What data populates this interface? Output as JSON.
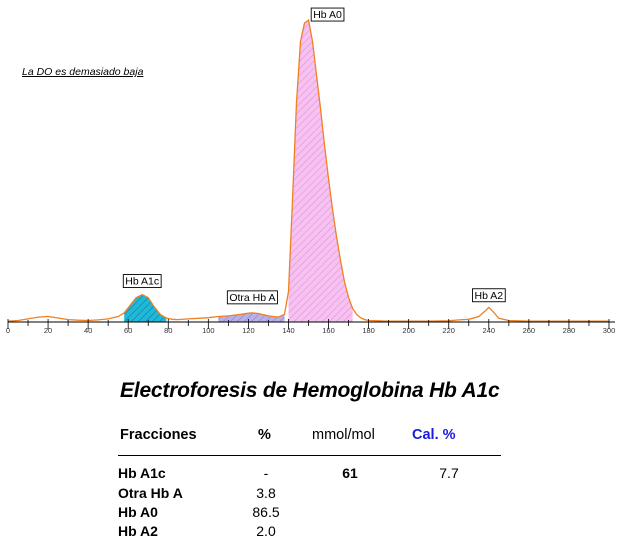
{
  "note": "La DO es demasiado baja",
  "report_title": "Electroforesis de Hemoglobina Hb A1c",
  "table": {
    "headers": [
      "Fracciones",
      "%",
      "mmol/mol",
      "Cal. %"
    ],
    "rows": [
      {
        "name": "Hb A1c",
        "pct": "-",
        "mmol": "61",
        "cal": "7.7"
      },
      {
        "name": "Otra Hb A",
        "pct": "3.8",
        "mmol": "",
        "cal": ""
      },
      {
        "name": "Hb A0",
        "pct": "86.5",
        "mmol": "",
        "cal": ""
      },
      {
        "name": "Hb A2",
        "pct": "2.0",
        "mmol": "",
        "cal": ""
      }
    ]
  },
  "colors": {
    "trace": "#f08020",
    "hba1c_fill": "#20b8d8",
    "otra_fill": "#b8b0e8",
    "hba0_fill": "#f6c2f0",
    "cal_header": "#1a1ad8"
  },
  "chart_data": {
    "type": "area",
    "title": "",
    "xlabel": "",
    "ylabel": "",
    "xlim": [
      0,
      300
    ],
    "ylim": [
      0,
      100
    ],
    "grid": false,
    "xticks": [
      0,
      20,
      40,
      60,
      80,
      100,
      120,
      140,
      160,
      180,
      200,
      220,
      240,
      260,
      280,
      300
    ],
    "peaks": [
      {
        "name": "Hb A1c",
        "x": 67,
        "height": 9
      },
      {
        "name": "Otra Hb A",
        "x": 122,
        "height": 3
      },
      {
        "name": "Hb A0",
        "x": 150,
        "height": 99
      },
      {
        "name": "Hb A2",
        "x": 240,
        "height": 5
      }
    ],
    "series": [
      {
        "x": [
          0,
          5,
          10,
          15,
          20,
          25,
          30,
          35,
          40,
          45,
          50,
          55,
          58,
          61,
          64,
          67,
          70,
          73,
          76,
          79,
          82,
          85,
          90,
          95,
          100,
          105,
          110,
          115,
          120,
          122,
          125,
          130,
          135,
          138,
          140,
          142,
          144,
          146,
          148,
          150,
          152,
          154,
          156,
          158,
          160,
          162,
          164,
          166,
          168,
          170,
          172,
          174,
          176,
          178,
          180,
          185,
          190,
          200,
          210,
          220,
          225,
          230,
          235,
          238,
          240,
          242,
          245,
          250,
          260,
          270,
          280,
          290,
          300
        ],
        "values": [
          0.3,
          0.5,
          1.0,
          1.6,
          1.8,
          1.3,
          0.8,
          0.6,
          0.5,
          0.7,
          1.0,
          1.8,
          3.0,
          5.5,
          8.0,
          9.0,
          8.0,
          5.0,
          2.5,
          1.3,
          0.9,
          0.8,
          1.0,
          1.2,
          1.4,
          1.8,
          2.0,
          2.4,
          2.9,
          3.0,
          2.8,
          2.0,
          1.6,
          2.5,
          10,
          40,
          72,
          92,
          98,
          99,
          92,
          81,
          70,
          58,
          47,
          37,
          28,
          20,
          13,
          8,
          4.5,
          2.5,
          1.4,
          0.8,
          0.5,
          0.4,
          0.3,
          0.3,
          0.3,
          0.4,
          0.7,
          0.9,
          1.8,
          3.5,
          4.8,
          3.5,
          1.2,
          0.5,
          0.3,
          0.3,
          0.3,
          0.3,
          0.3
        ]
      }
    ]
  }
}
